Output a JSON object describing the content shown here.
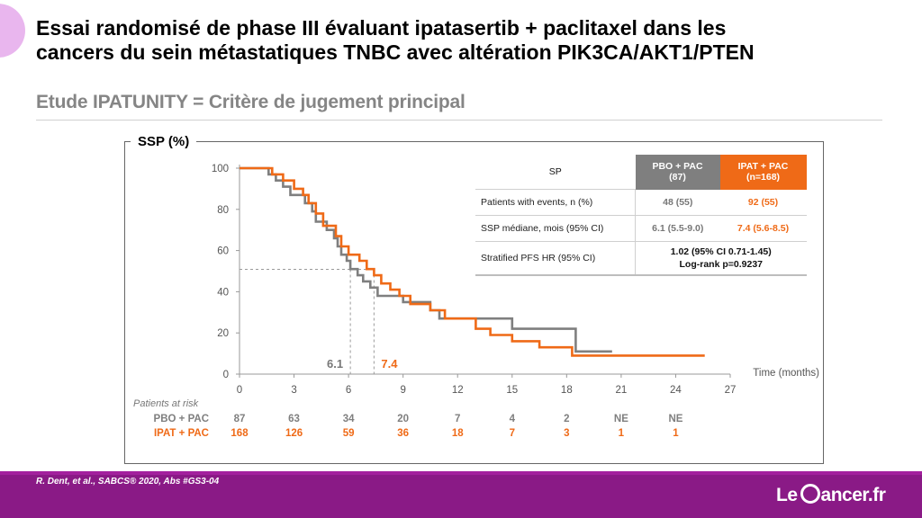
{
  "title": {
    "line1": "Essai randomisé de phase III évaluant  ipatasertib + paclitaxel dans les",
    "line2": "cancers du sein métastatiques TNBC avec altération PIK3CA/AKT1/PTEN"
  },
  "subtitle": "Etude IPATUNITY = Critère de jugement principal",
  "footer": {
    "reference": "R. Dent, et al., SABCS® 2020, Abs #GS3-04",
    "brand_left": "Le",
    "brand_right": "ancer.fr"
  },
  "colors": {
    "pbo": "#7f7f7f",
    "ipat": "#ef6a17",
    "footer": "#8a1a86",
    "accent_circle": "#e9b6ee"
  },
  "results_table": {
    "header_label": "SP",
    "pbo_header_line1": "PBO + PAC",
    "pbo_header_line2": "(87)",
    "ipat_header_line1": "IPAT + PAC",
    "ipat_header_line2": "(n=168)",
    "rows": [
      {
        "label": "Patients with events, n (%)",
        "pbo": "48 (55)",
        "ipat": "92 (55)"
      },
      {
        "label": "SSP médiane, mois (95% CI)",
        "pbo": "6.1 (5.5-9.0)",
        "ipat": "7.4 (5.6-8.5)"
      }
    ],
    "hr_row": {
      "label": "Stratified PFS HR (95% CI)",
      "line1": "1.02 (95% CI 0.71-1.45)",
      "line2": "Log-rank p=0.9237"
    }
  },
  "chart_data": {
    "type": "line",
    "ylabel": "SSP (%)",
    "xlabel": "Time (months)",
    "xlim": [
      0,
      27
    ],
    "ylim": [
      0,
      100
    ],
    "x_ticks": [
      0,
      3,
      6,
      9,
      12,
      15,
      18,
      21,
      24,
      27
    ],
    "y_ticks": [
      0,
      20,
      40,
      60,
      80,
      100
    ],
    "series": [
      {
        "name": "PBO + PAC",
        "color": "#7f7f7f",
        "median": 6.1,
        "median_label": "6.1",
        "points": [
          [
            0,
            100
          ],
          [
            1.6,
            100
          ],
          [
            1.6,
            97
          ],
          [
            2.0,
            97
          ],
          [
            2.0,
            94
          ],
          [
            2.4,
            94
          ],
          [
            2.4,
            91
          ],
          [
            2.8,
            91
          ],
          [
            2.8,
            87
          ],
          [
            3.6,
            87
          ],
          [
            3.6,
            83
          ],
          [
            4.0,
            83
          ],
          [
            4.0,
            79
          ],
          [
            4.2,
            79
          ],
          [
            4.2,
            74
          ],
          [
            4.8,
            74
          ],
          [
            4.8,
            70
          ],
          [
            5.2,
            70
          ],
          [
            5.2,
            66
          ],
          [
            5.4,
            66
          ],
          [
            5.4,
            62
          ],
          [
            5.6,
            62
          ],
          [
            5.6,
            58
          ],
          [
            5.9,
            58
          ],
          [
            5.9,
            55
          ],
          [
            6.1,
            55
          ],
          [
            6.1,
            51
          ],
          [
            6.5,
            51
          ],
          [
            6.5,
            48
          ],
          [
            6.8,
            48
          ],
          [
            6.8,
            45
          ],
          [
            7.2,
            45
          ],
          [
            7.2,
            42
          ],
          [
            7.6,
            42
          ],
          [
            7.6,
            38
          ],
          [
            9.0,
            38
          ],
          [
            9.0,
            35
          ],
          [
            10.5,
            35
          ],
          [
            10.5,
            31
          ],
          [
            11.0,
            31
          ],
          [
            11.0,
            27
          ],
          [
            15.0,
            27
          ],
          [
            15.0,
            22
          ],
          [
            18.5,
            22
          ],
          [
            18.5,
            11
          ],
          [
            20.5,
            11
          ]
        ]
      },
      {
        "name": "IPAT + PAC",
        "color": "#ef6a17",
        "median": 7.4,
        "median_label": "7.4",
        "points": [
          [
            0,
            100
          ],
          [
            1.8,
            100
          ],
          [
            1.8,
            97
          ],
          [
            2.4,
            97
          ],
          [
            2.4,
            94
          ],
          [
            3.0,
            94
          ],
          [
            3.0,
            90
          ],
          [
            3.5,
            90
          ],
          [
            3.5,
            87
          ],
          [
            3.8,
            87
          ],
          [
            3.8,
            83
          ],
          [
            4.2,
            83
          ],
          [
            4.2,
            78
          ],
          [
            4.6,
            78
          ],
          [
            4.6,
            72
          ],
          [
            5.3,
            72
          ],
          [
            5.3,
            67
          ],
          [
            5.6,
            67
          ],
          [
            5.6,
            62
          ],
          [
            6.0,
            62
          ],
          [
            6.0,
            58
          ],
          [
            6.6,
            58
          ],
          [
            6.6,
            55
          ],
          [
            7.0,
            55
          ],
          [
            7.0,
            51
          ],
          [
            7.4,
            51
          ],
          [
            7.4,
            48
          ],
          [
            7.8,
            48
          ],
          [
            7.8,
            44
          ],
          [
            8.3,
            44
          ],
          [
            8.3,
            41
          ],
          [
            8.8,
            41
          ],
          [
            8.8,
            38
          ],
          [
            9.4,
            38
          ],
          [
            9.4,
            34
          ],
          [
            10.5,
            34
          ],
          [
            10.5,
            31
          ],
          [
            11.3,
            31
          ],
          [
            11.3,
            27
          ],
          [
            13.0,
            27
          ],
          [
            13.0,
            22
          ],
          [
            13.8,
            22
          ],
          [
            13.8,
            19
          ],
          [
            15.0,
            19
          ],
          [
            15.0,
            16
          ],
          [
            16.5,
            16
          ],
          [
            16.5,
            13
          ],
          [
            18.3,
            13
          ],
          [
            18.3,
            9
          ],
          [
            25.6,
            9
          ]
        ]
      }
    ],
    "risk_table": {
      "title": "Patients at risk",
      "times": [
        0,
        3,
        6,
        9,
        12,
        15,
        18,
        21,
        24
      ],
      "rows": [
        {
          "name": "PBO + PAC",
          "color": "#7f7f7f",
          "values": [
            "87",
            "63",
            "34",
            "20",
            "7",
            "4",
            "2",
            "NE",
            "NE"
          ]
        },
        {
          "name": "IPAT + PAC",
          "color": "#ef6a17",
          "values": [
            "168",
            "126",
            "59",
            "36",
            "18",
            "7",
            "3",
            "1",
            "1"
          ]
        }
      ]
    }
  }
}
